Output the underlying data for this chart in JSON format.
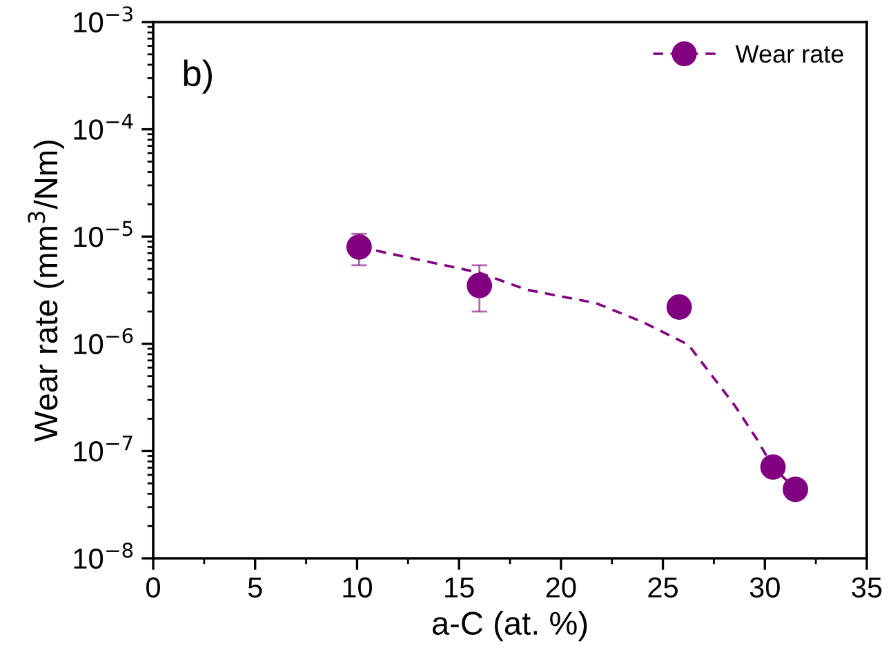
{
  "chart_data": {
    "type": "scatter",
    "xlabel": "a-C (at. %)",
    "ylabel": "Wear rate (mm$^{3}$/Nm)",
    "annotations": [
      "b)"
    ],
    "log": "y",
    "xlim": [
      0,
      35
    ],
    "xticks": [
      0,
      5,
      10,
      15,
      20,
      25,
      30,
      35
    ],
    "ylim": [
      1e-08,
      0.001
    ],
    "yticks": [
      {
        "value": 1e-08,
        "label": "10$^{−8}$"
      },
      {
        "value": 1e-07,
        "label": "10$^{−7}$"
      },
      {
        "value": 1e-06,
        "label": "10$^{−6}$"
      },
      {
        "value": 1e-05,
        "label": "10$^{−5}$"
      },
      {
        "value": 0.0001,
        "label": "10$^{−4}$"
      },
      {
        "value": 0.001,
        "label": "10$^{−3}$"
      }
    ],
    "grid": false,
    "legend": "top right",
    "series": [
      {
        "type": "line",
        "color": "#800080",
        "line_style": "dashed",
        "marker": "none",
        "x": [
          10.1,
          16.0,
          18.3,
          21.7,
          24.0,
          26.25,
          28.5,
          29.6,
          30.4,
          31.5
        ],
        "values": [
          8e-06,
          4.6e-06,
          3.2e-06,
          2.4e-06,
          1.6e-06,
          9.8e-07,
          2.7e-07,
          1.3e-07,
          7.1e-08,
          4.4e-08
        ]
      },
      {
        "name": "Wear rate",
        "color": "#800080",
        "marker": "circle",
        "x": [
          10.1,
          16.0,
          25.8,
          30.4,
          31.5
        ],
        "values": [
          8e-06,
          3.5e-06,
          2.2e-06,
          7.1e-08,
          4.4e-08
        ],
        "errors": [
          [
            5.4e-06,
            1.06e-05
          ],
          [
            2e-06,
            5.4e-06
          ],
          null,
          null,
          null
        ]
      }
    ]
  }
}
